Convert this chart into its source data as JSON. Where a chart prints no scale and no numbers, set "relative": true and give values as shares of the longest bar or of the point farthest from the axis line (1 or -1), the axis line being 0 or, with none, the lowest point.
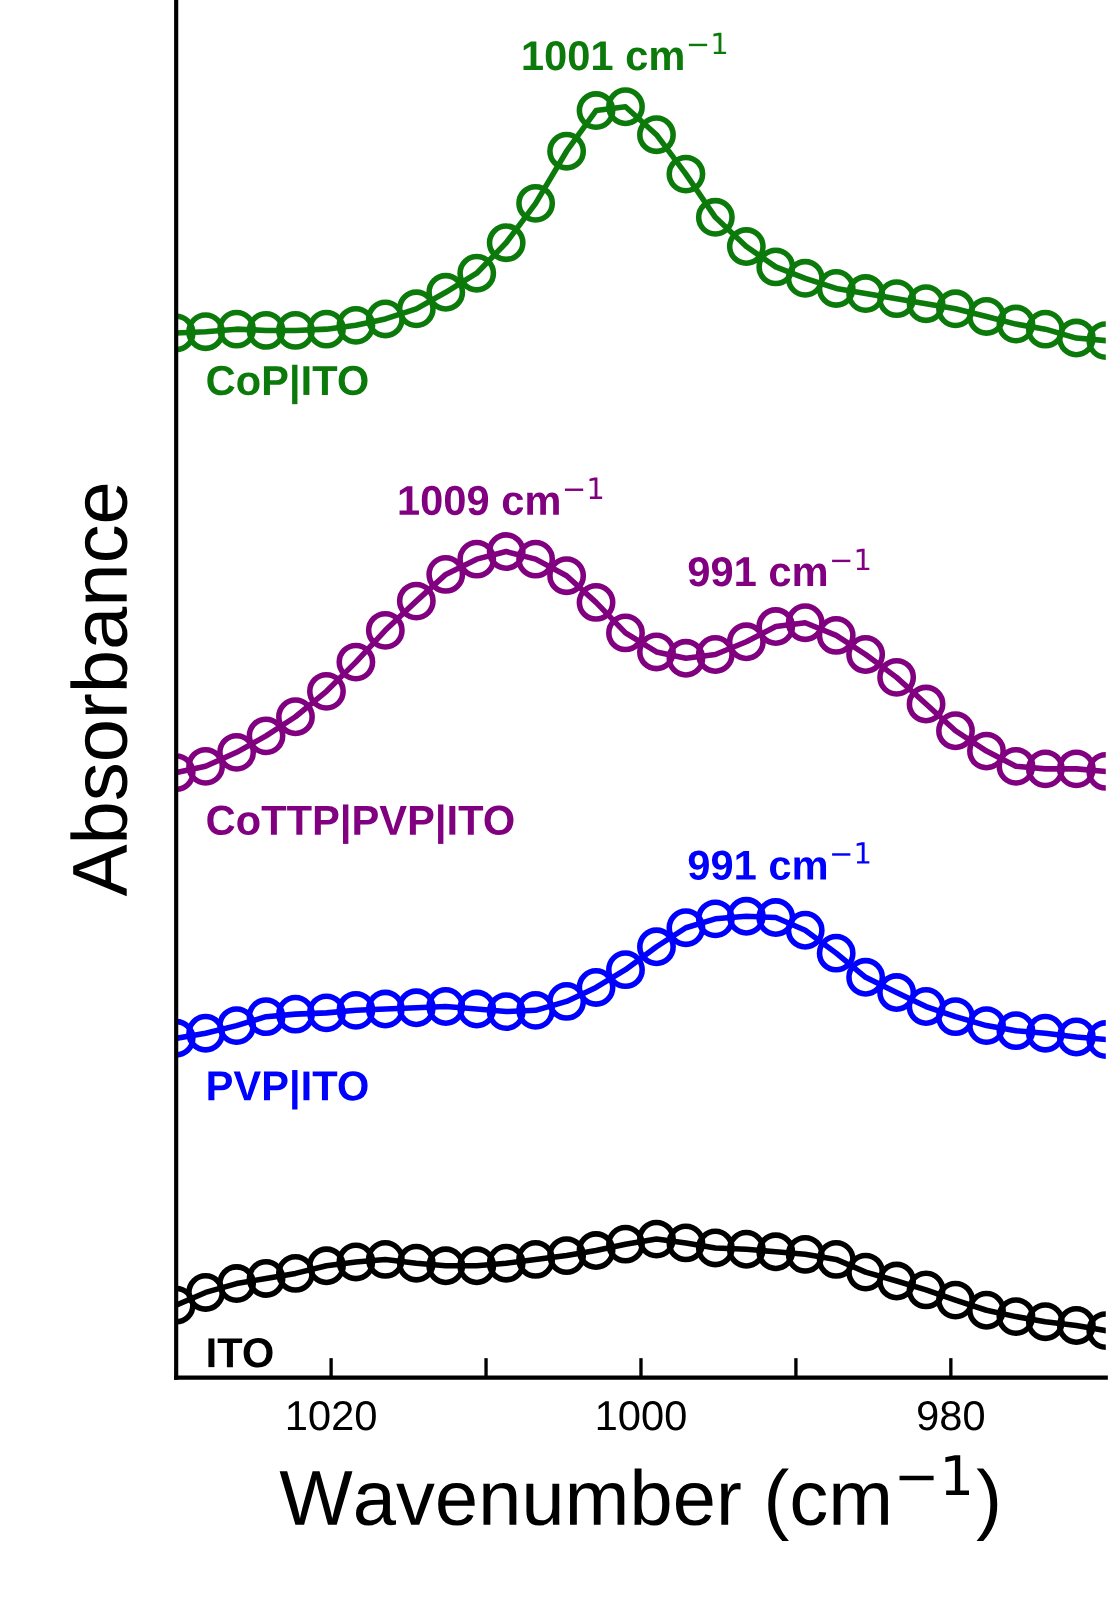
{
  "chart_data": {
    "type": "line",
    "relative": true,
    "xlabel": "Wavenumber (cm$^{−1}$)",
    "ylabel": "Absorbance",
    "marker": "circle",
    "line_style": "solid",
    "grid": false,
    "xlim": [
      1030,
      970
    ],
    "xticks": [
      1020,
      {
        "value": 1010,
        "label": null
      },
      1000,
      {
        "value": 990,
        "label": null
      },
      980
    ],
    "x": [
      1030,
      1028.1,
      1026.1,
      1024.2,
      1022.3,
      1020.3,
      1018.4,
      1016.5,
      1014.5,
      1012.6,
      1010.6,
      1008.7,
      1006.8,
      1004.8,
      1002.9,
      1001.0,
      999.0,
      997.1,
      995.2,
      993.2,
      991.3,
      989.4,
      987.4,
      985.5,
      983.5,
      981.6,
      979.7,
      977.7,
      975.8,
      973.9,
      971.9,
      970.0
    ],
    "series": [
      {
        "name": "CoP|ITO",
        "color": "#0b7a0b",
        "values": [
          0.822,
          0.823,
          0.825,
          0.824,
          0.824,
          0.825,
          0.828,
          0.833,
          0.841,
          0.854,
          0.869,
          0.893,
          0.924,
          0.965,
          0.997,
          1.0,
          0.978,
          0.947,
          0.913,
          0.89,
          0.874,
          0.865,
          0.857,
          0.853,
          0.849,
          0.845,
          0.841,
          0.835,
          0.829,
          0.825,
          0.818,
          0.816
        ]
      },
      {
        "name": "CoTTP|PVP|ITO",
        "color": "#800080",
        "values": [
          0.476,
          0.481,
          0.492,
          0.505,
          0.52,
          0.54,
          0.563,
          0.588,
          0.611,
          0.632,
          0.644,
          0.65,
          0.644,
          0.631,
          0.61,
          0.586,
          0.571,
          0.566,
          0.569,
          0.579,
          0.591,
          0.594,
          0.584,
          0.569,
          0.551,
          0.53,
          0.509,
          0.493,
          0.481,
          0.479,
          0.479,
          0.477
        ]
      },
      {
        "name": "PVP|ITO",
        "color": "#0000ff",
        "values": [
          0.267,
          0.271,
          0.277,
          0.284,
          0.286,
          0.287,
          0.289,
          0.29,
          0.291,
          0.292,
          0.29,
          0.288,
          0.289,
          0.296,
          0.307,
          0.321,
          0.339,
          0.354,
          0.361,
          0.363,
          0.362,
          0.352,
          0.334,
          0.315,
          0.303,
          0.292,
          0.284,
          0.277,
          0.273,
          0.271,
          0.268,
          0.266
        ]
      },
      {
        "name": "ITO",
        "color": "#000000",
        "values": [
          0.057,
          0.067,
          0.074,
          0.078,
          0.082,
          0.088,
          0.091,
          0.093,
          0.09,
          0.088,
          0.088,
          0.09,
          0.093,
          0.096,
          0.1,
          0.105,
          0.109,
          0.106,
          0.102,
          0.101,
          0.099,
          0.097,
          0.093,
          0.083,
          0.076,
          0.069,
          0.061,
          0.053,
          0.048,
          0.044,
          0.041,
          0.037
        ]
      }
    ],
    "annotations": [
      {
        "text": "1001 cm$^{−1}$",
        "x": 1001,
        "y": 1.0
      },
      {
        "text": "1009 cm$^{−1}$",
        "x": 1009,
        "y": 0.65
      },
      {
        "text": "991 cm$^{−1}$",
        "x": 991,
        "y": 0.594
      },
      {
        "text": "991 cm$^{−1}$",
        "x": 991,
        "y": 0.363
      }
    ]
  }
}
